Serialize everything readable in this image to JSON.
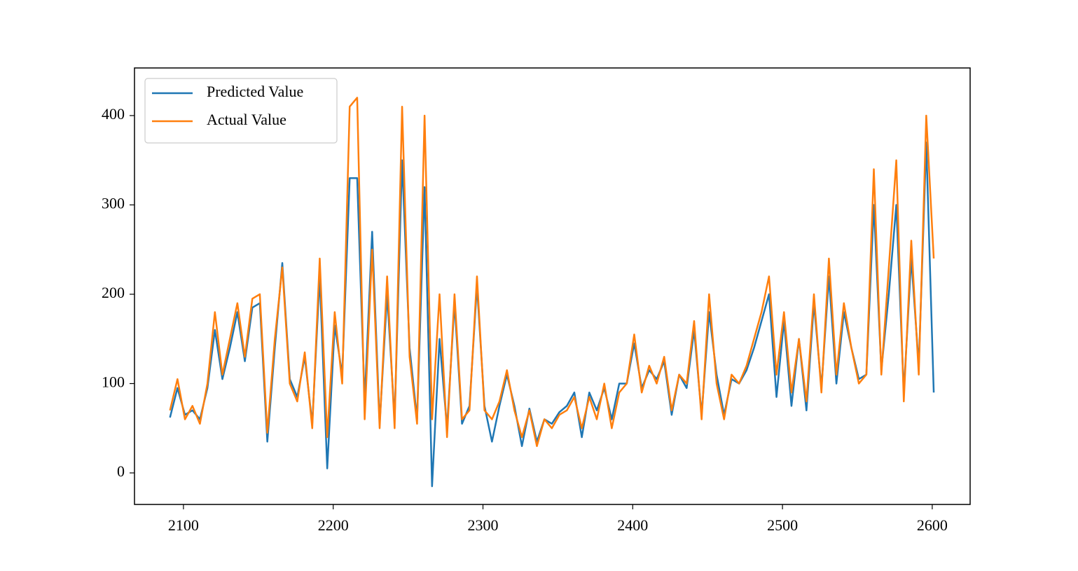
{
  "chart_data": {
    "type": "line",
    "x": [
      2091,
      2096,
      2101,
      2106,
      2111,
      2116,
      2121,
      2126,
      2131,
      2136,
      2141,
      2146,
      2151,
      2156,
      2161,
      2166,
      2171,
      2176,
      2181,
      2186,
      2191,
      2196,
      2201,
      2206,
      2211,
      2216,
      2221,
      2226,
      2231,
      2236,
      2241,
      2246,
      2251,
      2256,
      2261,
      2266,
      2271,
      2276,
      2281,
      2286,
      2291,
      2296,
      2301,
      2306,
      2311,
      2316,
      2321,
      2326,
      2331,
      2336,
      2341,
      2346,
      2351,
      2356,
      2361,
      2366,
      2371,
      2376,
      2381,
      2386,
      2391,
      2396,
      2401,
      2406,
      2411,
      2416,
      2421,
      2426,
      2431,
      2436,
      2441,
      2446,
      2451,
      2456,
      2461,
      2466,
      2471,
      2476,
      2481,
      2486,
      2491,
      2496,
      2501,
      2506,
      2511,
      2516,
      2521,
      2526,
      2531,
      2536,
      2541,
      2546,
      2551,
      2556,
      2561,
      2566,
      2571,
      2576,
      2581,
      2586,
      2591,
      2596,
      2601
    ],
    "series": [
      {
        "name": "Predicted Value",
        "color": "#1f77b4",
        "values": [
          62,
          95,
          65,
          70,
          60,
          95,
          160,
          105,
          140,
          180,
          125,
          185,
          190,
          35,
          140,
          235,
          105,
          85,
          130,
          55,
          220,
          5,
          165,
          110,
          330,
          330,
          80,
          270,
          55,
          200,
          60,
          350,
          140,
          60,
          320,
          -15,
          150,
          50,
          190,
          55,
          75,
          210,
          75,
          35,
          75,
          110,
          75,
          30,
          72,
          35,
          60,
          55,
          68,
          75,
          90,
          40,
          90,
          70,
          95,
          60,
          100,
          100,
          145,
          95,
          115,
          105,
          125,
          65,
          110,
          95,
          160,
          65,
          180,
          110,
          65,
          105,
          100,
          115,
          140,
          170,
          200,
          85,
          170,
          75,
          150,
          70,
          190,
          95,
          220,
          100,
          180,
          140,
          105,
          110,
          300,
          115,
          200,
          300,
          90,
          240,
          120,
          370,
          90
        ]
      },
      {
        "name": "Actual Value",
        "color": "#ff7f0e",
        "values": [
          70,
          105,
          60,
          75,
          55,
          100,
          180,
          110,
          150,
          190,
          130,
          195,
          200,
          45,
          150,
          230,
          100,
          80,
          135,
          50,
          240,
          40,
          180,
          100,
          410,
          420,
          60,
          250,
          50,
          220,
          50,
          410,
          130,
          55,
          400,
          60,
          200,
          40,
          200,
          60,
          70,
          220,
          70,
          60,
          80,
          115,
          70,
          40,
          70,
          30,
          60,
          50,
          65,
          70,
          85,
          50,
          85,
          60,
          100,
          50,
          90,
          100,
          155,
          90,
          120,
          100,
          130,
          70,
          110,
          100,
          170,
          60,
          200,
          100,
          60,
          110,
          100,
          120,
          150,
          180,
          220,
          110,
          180,
          90,
          150,
          80,
          200,
          90,
          240,
          110,
          190,
          140,
          100,
          110,
          340,
          110,
          230,
          350,
          80,
          260,
          110,
          400,
          240
        ]
      }
    ],
    "xlim": [
      2067.3,
      2625.3
    ],
    "ylim": [
      -35.3,
      453.3
    ],
    "xticks": [
      2100,
      2200,
      2300,
      2400,
      2500,
      2600
    ],
    "yticks": [
      0,
      100,
      200,
      300,
      400
    ],
    "legend": "upper left",
    "grid": false
  }
}
